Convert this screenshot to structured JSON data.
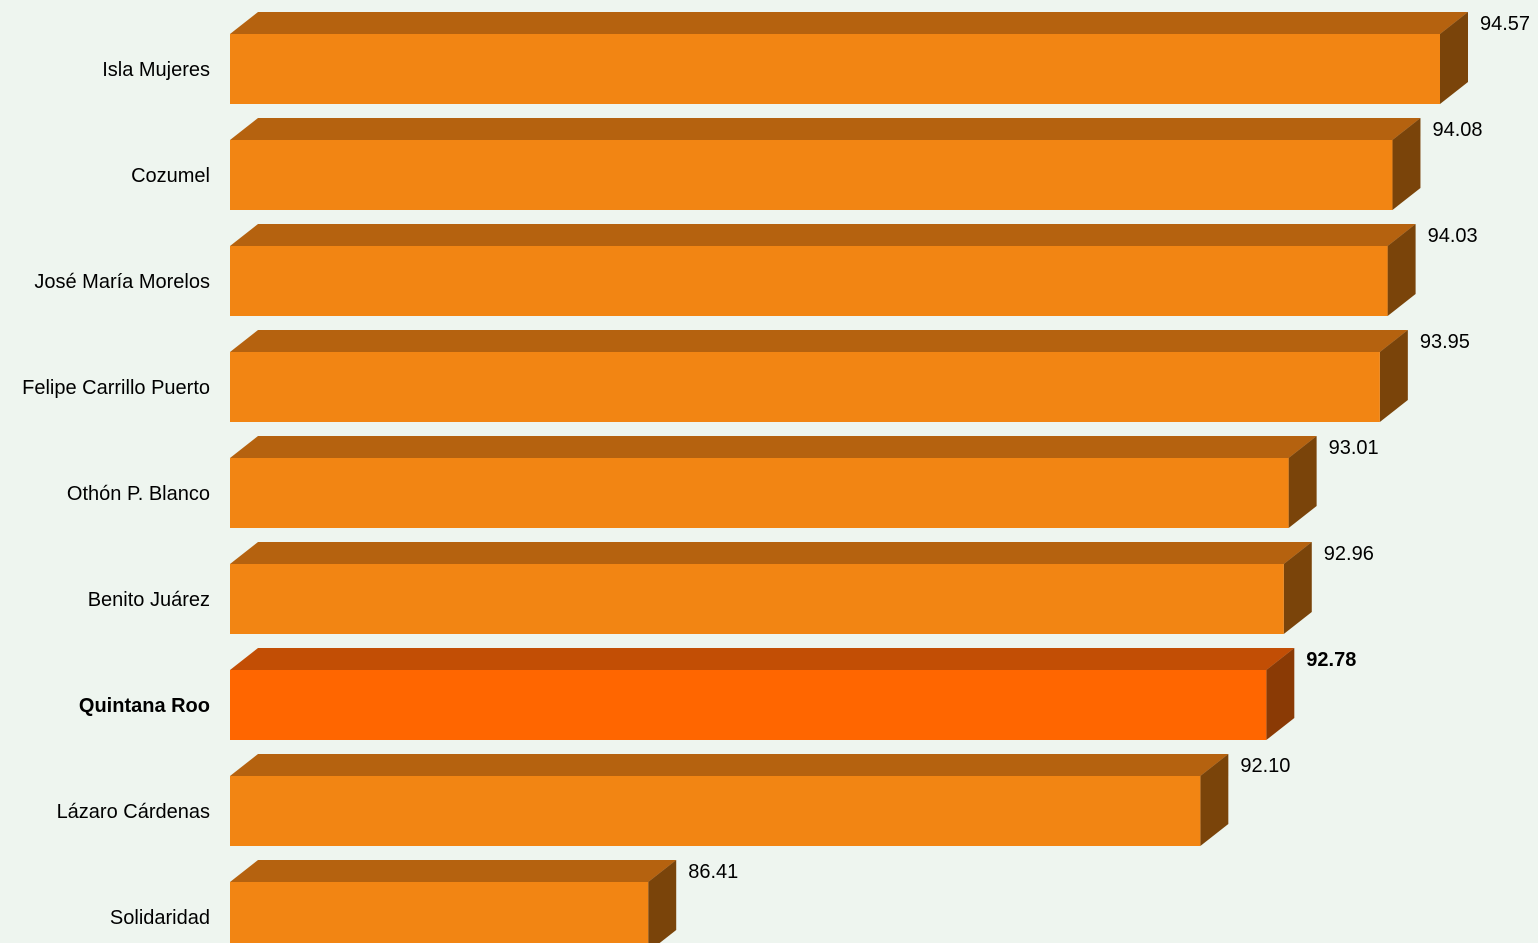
{
  "chart_data": {
    "type": "bar",
    "orientation": "horizontal",
    "style": "3d",
    "categories": [
      "Isla Mujeres",
      "Cozumel",
      "José María Morelos",
      "Felipe Carrillo Puerto",
      "Othón P. Blanco",
      "Benito Juárez",
      "Quintana Roo",
      "Lázaro Cárdenas",
      "Solidaridad"
    ],
    "values": [
      94.57,
      94.08,
      94.03,
      93.95,
      93.01,
      92.96,
      92.78,
      92.1,
      86.41
    ],
    "value_labels": [
      "94.57",
      "94.08",
      "94.03",
      "93.95",
      "93.01",
      "92.96",
      "92.78",
      "92.10",
      "86.41"
    ],
    "highlight": "Quintana Roo",
    "xlim": [
      82.1,
      94.57
    ],
    "grid": false,
    "legend": "none",
    "colors": {
      "bar_front": "#f28513",
      "bar_top": "#b5620f",
      "bar_side": "#7a440a",
      "highlight_front": "#ff6600",
      "highlight_top": "#c24e05",
      "highlight_side": "#8a3a05",
      "background": "#eef5ef"
    }
  }
}
